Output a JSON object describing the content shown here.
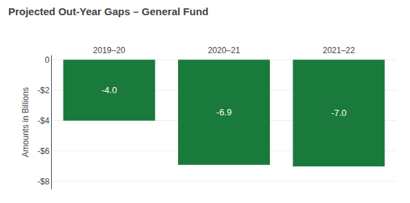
{
  "chart_data": {
    "type": "bar",
    "title": "Projected Out-Year Gaps – General Fund",
    "categories": [
      "2019–20",
      "2020–21",
      "2021–22"
    ],
    "values": [
      -4.0,
      -6.9,
      -7.0
    ],
    "value_labels": [
      "-4.0",
      "-6.9",
      "-7.0"
    ],
    "data_labels": true,
    "color": "#1a7a3c",
    "ylabel": "Amounts in Billions",
    "ylim": [
      -8.5,
      0.3
    ],
    "yticks": [
      0,
      {
        "value": -2,
        "label": "-$2"
      },
      {
        "value": -4,
        "label": "-$4"
      },
      {
        "value": -6,
        "label": "-$6"
      },
      {
        "value": -8,
        "label": "-$8"
      }
    ],
    "grid": true
  }
}
